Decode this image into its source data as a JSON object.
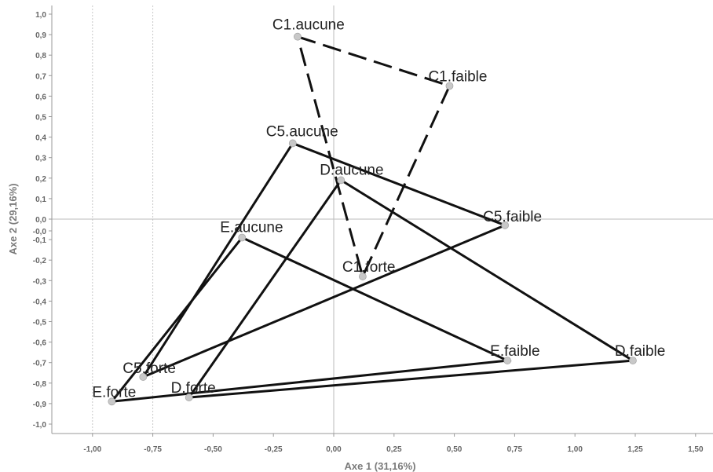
{
  "chart_data": {
    "type": "scatter",
    "xlabel": "Axe 1 (31,16%)",
    "ylabel": "Axe 2 (29,16%)",
    "xlim": [
      -1.1,
      1.55
    ],
    "ylim": [
      -1.05,
      1.0
    ],
    "x_ticks": [
      "-1,00",
      "-0,75",
      "-0,50",
      "-0,25",
      "0,00",
      "0,25",
      "0,50",
      "0,75",
      "1,00",
      "1,25",
      "1,50"
    ],
    "x_tick_values": [
      -1.0,
      -0.75,
      -0.5,
      -0.25,
      0.0,
      0.25,
      0.5,
      0.75,
      1.0,
      1.25,
      1.5
    ],
    "y_ticks": [
      "1,0",
      "0,9",
      "0,8",
      "0,7",
      "0,6",
      "0,5",
      "0,4",
      "0,3",
      "0,2",
      "0,1",
      "0,0",
      "-0,0",
      "-0,1",
      "-0,2",
      "-0,3",
      "-0,4",
      "-0,5",
      "-0,6",
      "-0,7",
      "-0,8",
      "-0,9",
      "-1,0"
    ],
    "y_tick_values": [
      1.0,
      0.9,
      0.8,
      0.7,
      0.6,
      0.5,
      0.4,
      0.3,
      0.2,
      0.1,
      0.0,
      -0.0,
      -0.1,
      -0.2,
      -0.3,
      -0.4,
      -0.5,
      -0.6,
      -0.7,
      -0.8,
      -0.9,
      -1.0
    ],
    "grid": "vertical dashed lines at -1,00 and -0,75; zero reference lines",
    "points": [
      {
        "label": "C1.aucune",
        "x": -0.15,
        "y": 0.89
      },
      {
        "label": "C1.faible",
        "x": 0.48,
        "y": 0.65
      },
      {
        "label": "C1.forte",
        "x": 0.12,
        "y": -0.28
      },
      {
        "label": "C5.aucune",
        "x": -0.17,
        "y": 0.37
      },
      {
        "label": "C5.faible",
        "x": 0.71,
        "y": -0.03
      },
      {
        "label": "C5.forte",
        "x": -0.79,
        "y": -0.77
      },
      {
        "label": "D.aucune",
        "x": 0.03,
        "y": 0.19
      },
      {
        "label": "D.faible",
        "x": 1.24,
        "y": -0.69
      },
      {
        "label": "D.forte",
        "x": -0.6,
        "y": -0.87
      },
      {
        "label": "E.aucune",
        "x": -0.38,
        "y": -0.09
      },
      {
        "label": "E.faible",
        "x": 0.72,
        "y": -0.69
      },
      {
        "label": "E.forte",
        "x": -0.92,
        "y": -0.89
      }
    ],
    "triangles": [
      {
        "group": "C1",
        "vertices": [
          "C1.aucune",
          "C1.faible",
          "C1.forte"
        ],
        "style": "dashed"
      },
      {
        "group": "C5",
        "vertices": [
          "C5.aucune",
          "C5.faible",
          "C5.forte"
        ],
        "style": "solid"
      },
      {
        "group": "D",
        "vertices": [
          "D.aucune",
          "D.faible",
          "D.forte"
        ],
        "style": "solid"
      },
      {
        "group": "E",
        "vertices": [
          "E.aucune",
          "E.faible",
          "E.forte"
        ],
        "style": "solid"
      }
    ],
    "colors": {
      "line": "#111111",
      "marker": "#c8c8c8",
      "axis_text": "#666666",
      "zero_line": "#bbbbbb"
    }
  }
}
